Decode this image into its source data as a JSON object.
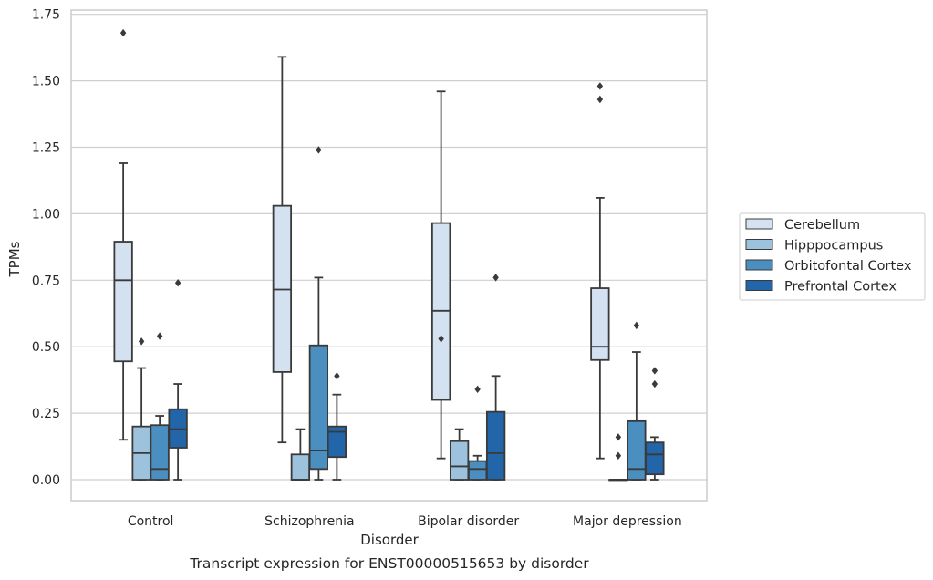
{
  "chart_data": {
    "type": "boxplot",
    "title": "",
    "xlabel": "Disorder",
    "ylabel": "TPMs",
    "caption": "Transcript expression for ENST00000515653 by disorder",
    "ylim": [
      -0.08,
      1.76
    ],
    "yticks": [
      "0.00",
      "0.25",
      "0.50",
      "0.75",
      "1.00",
      "1.25",
      "1.50",
      "1.75"
    ],
    "ytick_values": [
      0,
      0.25,
      0.5,
      0.75,
      1.0,
      1.25,
      1.5,
      1.75
    ],
    "grid": true,
    "legend_position": "right",
    "categories": [
      "Control",
      "Schizophrenia",
      "Bipolar disorder",
      "Major depression"
    ],
    "series": [
      {
        "name": "Cerebellum",
        "color": "#d4e1f0",
        "boxes": [
          {
            "whislo": 0.15,
            "q1": 0.445,
            "med": 0.75,
            "q3": 0.895,
            "whishi": 1.19,
            "fliers": [
              1.68
            ]
          },
          {
            "whislo": 0.14,
            "q1": 0.405,
            "med": 0.715,
            "q3": 1.03,
            "whishi": 1.59,
            "fliers": []
          },
          {
            "whislo": 0.08,
            "q1": 0.3,
            "med": 0.635,
            "q3": 0.965,
            "whishi": 1.46,
            "fliers": [
              0.53
            ]
          },
          {
            "whislo": 0.08,
            "q1": 0.45,
            "med": 0.5,
            "q3": 0.72,
            "whishi": 1.06,
            "fliers": [
              1.48,
              1.43
            ]
          }
        ]
      },
      {
        "name": "Hipppocampus",
        "color": "#9dc2de",
        "boxes": [
          {
            "whislo": 0.0,
            "q1": 0.0,
            "med": 0.1,
            "q3": 0.2,
            "whishi": 0.42,
            "fliers": [
              0.52
            ]
          },
          {
            "whislo": 0.0,
            "q1": 0.0,
            "med": 0.0,
            "q3": 0.095,
            "whishi": 0.19,
            "fliers": []
          },
          {
            "whislo": 0.0,
            "q1": 0.0,
            "med": 0.05,
            "q3": 0.145,
            "whishi": 0.19,
            "fliers": []
          },
          {
            "whislo": 0.0,
            "q1": 0.0,
            "med": 0.0,
            "q3": 0.0,
            "whishi": 0.0,
            "fliers": [
              0.16,
              0.09
            ]
          }
        ]
      },
      {
        "name": "Orbitofontal Cortex",
        "color": "#4a8fc0",
        "boxes": [
          {
            "whislo": 0.0,
            "q1": 0.0,
            "med": 0.04,
            "q3": 0.205,
            "whishi": 0.24,
            "fliers": [
              0.54
            ]
          },
          {
            "whislo": 0.0,
            "q1": 0.04,
            "med": 0.11,
            "q3": 0.505,
            "whishi": 0.76,
            "fliers": [
              1.24
            ]
          },
          {
            "whislo": 0.0,
            "q1": 0.0,
            "med": 0.04,
            "q3": 0.07,
            "whishi": 0.09,
            "fliers": [
              0.34
            ]
          },
          {
            "whislo": 0.0,
            "q1": 0.0,
            "med": 0.04,
            "q3": 0.22,
            "whishi": 0.48,
            "fliers": [
              0.58
            ]
          }
        ]
      },
      {
        "name": "Prefrontal Cortex",
        "color": "#2265a8",
        "boxes": [
          {
            "whislo": 0.0,
            "q1": 0.12,
            "med": 0.19,
            "q3": 0.265,
            "whishi": 0.36,
            "fliers": [
              0.74
            ]
          },
          {
            "whislo": 0.0,
            "q1": 0.085,
            "med": 0.18,
            "q3": 0.2,
            "whishi": 0.32,
            "fliers": [
              0.39
            ]
          },
          {
            "whislo": 0.0,
            "q1": 0.0,
            "med": 0.1,
            "q3": 0.255,
            "whishi": 0.39,
            "fliers": [
              0.76
            ]
          },
          {
            "whislo": 0.0,
            "q1": 0.02,
            "med": 0.095,
            "q3": 0.14,
            "whishi": 0.16,
            "fliers": [
              0.41,
              0.36
            ]
          }
        ]
      }
    ]
  }
}
